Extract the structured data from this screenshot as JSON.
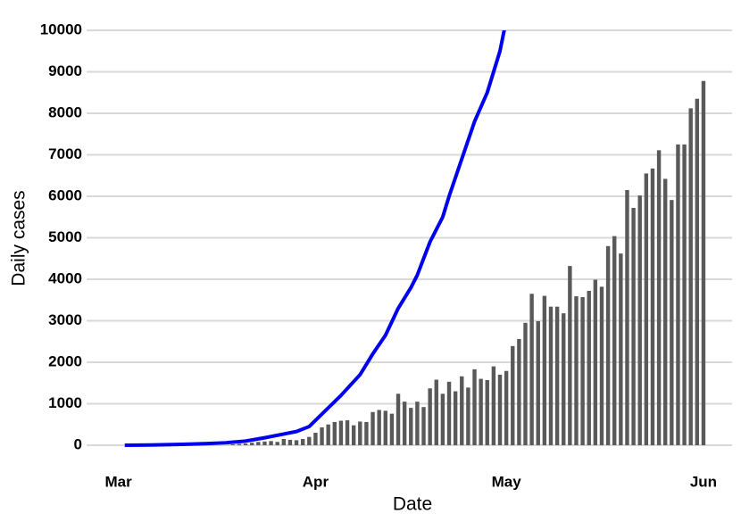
{
  "chart_data": {
    "type": "bar_line",
    "xlabel": "Date",
    "ylabel": "Daily cases",
    "xlim": [
      -5,
      96.5
    ],
    "xticks": [
      {
        "value": 0,
        "label": "Mar"
      },
      {
        "value": 31,
        "label": "Apr"
      },
      {
        "value": 61,
        "label": "May"
      },
      {
        "value": 92,
        "label": "Jun"
      }
    ],
    "ylim": [
      -250,
      10000
    ],
    "yticks": [
      0,
      1000,
      2000,
      3000,
      4000,
      5000,
      6000,
      7000,
      8000,
      9000,
      10000
    ],
    "grid": true,
    "series": [
      {
        "kind": "bar",
        "color": "#595959",
        "x": [
          18,
          19,
          20,
          21,
          22,
          23,
          24,
          25,
          26,
          27,
          28,
          29,
          30,
          31,
          32,
          33,
          34,
          35,
          36,
          37,
          38,
          39,
          40,
          41,
          42,
          43,
          44,
          45,
          46,
          47,
          48,
          49,
          50,
          51,
          52,
          53,
          54,
          55,
          56,
          57,
          58,
          59,
          60,
          61,
          62,
          63,
          64,
          65,
          66,
          67,
          68,
          69,
          70,
          71,
          72,
          73,
          74,
          75,
          76,
          77,
          78,
          79,
          80,
          81,
          82,
          83,
          84,
          85,
          86,
          87,
          88,
          89,
          90,
          91,
          92
        ],
        "values": [
          20,
          30,
          40,
          60,
          80,
          90,
          100,
          80,
          150,
          130,
          120,
          150,
          200,
          300,
          430,
          500,
          560,
          590,
          600,
          480,
          570,
          560,
          800,
          850,
          830,
          760,
          1240,
          1050,
          900,
          1050,
          920,
          1370,
          1580,
          1240,
          1530,
          1300,
          1660,
          1390,
          1830,
          1600,
          1570,
          1900,
          1700,
          1790,
          2390,
          2560,
          2950,
          3650,
          2990,
          3600,
          3340,
          3340,
          3180,
          4320,
          3590,
          3570,
          3720,
          3990,
          3820,
          4800,
          5040,
          4620,
          6150,
          5720,
          6020,
          6550,
          6670,
          7110,
          6420,
          5910,
          7250,
          7250,
          8120,
          8350,
          8780
        ]
      },
      {
        "kind": "line",
        "color": "#0000ee",
        "x": [
          1,
          5,
          10,
          14,
          17,
          20,
          23,
          26,
          28,
          30,
          31,
          33,
          35,
          38,
          40,
          42,
          44,
          46,
          47,
          49,
          51,
          52,
          54,
          56,
          58,
          60,
          61
        ],
        "values": [
          0,
          5,
          20,
          40,
          60,
          100,
          180,
          270,
          330,
          450,
          600,
          900,
          1200,
          1700,
          2200,
          2650,
          3300,
          3800,
          4100,
          4900,
          5500,
          6000,
          6900,
          7800,
          8500,
          9500,
          10250
        ]
      }
    ]
  }
}
